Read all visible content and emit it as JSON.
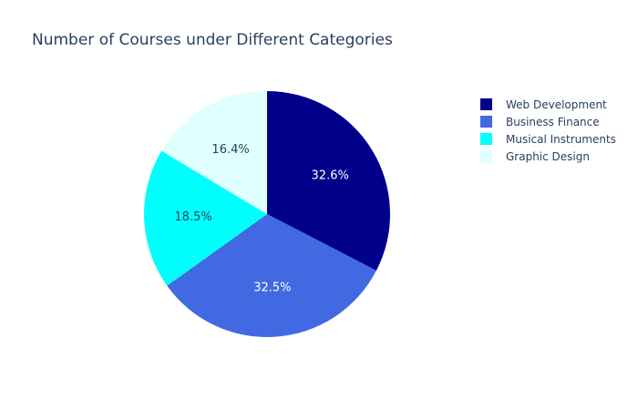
{
  "chart_data": {
    "type": "pie",
    "title": "Number of Courses under Different Categories",
    "legend_position": "right",
    "sort": "descending",
    "direction": "clockwise",
    "start_angle": "12 o'clock",
    "slices": [
      {
        "label": "Web Development",
        "percent": 32.6,
        "percent_label": "32.6%",
        "color": "#00008b",
        "text_color": "#ffffff"
      },
      {
        "label": "Business Finance",
        "percent": 32.5,
        "percent_label": "32.5%",
        "color": "#4169e1",
        "text_color": "#ffffff"
      },
      {
        "label": "Musical Instruments",
        "percent": 18.5,
        "percent_label": "18.5%",
        "color": "#00ffff",
        "text_color": "#2a3f5f"
      },
      {
        "label": "Graphic Design",
        "percent": 16.4,
        "percent_label": "16.4%",
        "color": "#e0ffff",
        "text_color": "#2a3f5f"
      }
    ]
  }
}
